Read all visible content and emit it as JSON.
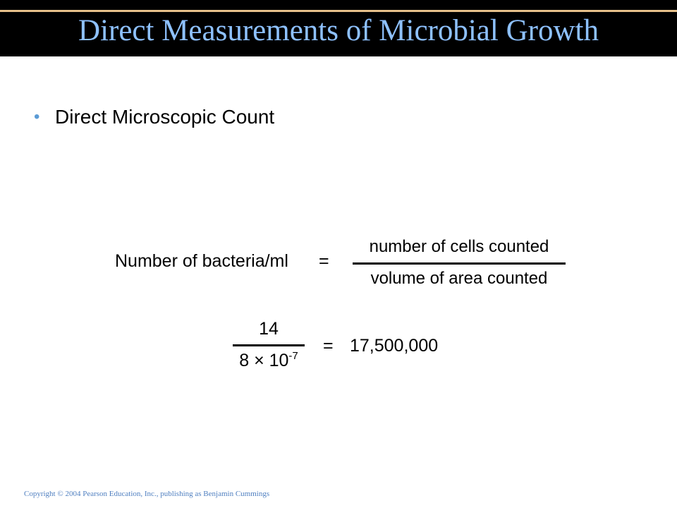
{
  "slide": {
    "title": "Direct Measurements of Microbial Growth",
    "bullets": [
      {
        "marker": "•",
        "text": "Direct Microscopic Count"
      }
    ]
  },
  "equation": {
    "line1": {
      "label": "Number of bacteria/ml",
      "equals": "=",
      "numerator": "number of cells counted",
      "denominator": "volume of area counted"
    },
    "line2": {
      "numerator": "14",
      "denominator_base": "8 × 10",
      "denominator_exponent": "-7",
      "equals": "=",
      "result": "17,500,000"
    }
  },
  "footer": {
    "copyright": "Copyright © 2004 Pearson Education, Inc., publishing as Benjamin Cummings"
  }
}
